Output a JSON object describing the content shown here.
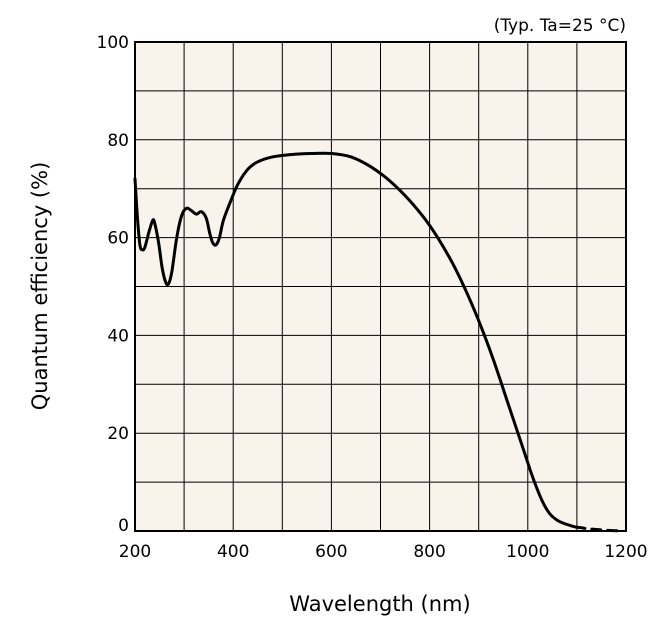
{
  "chart_data": {
    "type": "line",
    "title": "",
    "annotation": "(Typ. Ta=25 °C)",
    "xlabel": "Wavelength (nm)",
    "ylabel": "Quantum efficiency (%)",
    "xlim": [
      200,
      1200
    ],
    "ylim": [
      0,
      100
    ],
    "xticks": [
      200,
      400,
      600,
      800,
      1000,
      1200
    ],
    "yticks": [
      0,
      20,
      40,
      60,
      80,
      100
    ],
    "x_grid_step": 100,
    "y_grid_step": 10,
    "grid": true,
    "colors": {
      "plot_background": "#f8f4ec",
      "grid": "#000000",
      "series": "#000000"
    },
    "series": [
      {
        "name": "quantum-efficiency",
        "style": "solid",
        "points": [
          [
            200,
            72
          ],
          [
            205,
            64
          ],
          [
            210,
            58.5
          ],
          [
            215,
            57.5
          ],
          [
            220,
            58
          ],
          [
            228,
            61
          ],
          [
            236,
            63.5
          ],
          [
            240,
            63
          ],
          [
            248,
            59
          ],
          [
            255,
            54
          ],
          [
            262,
            51
          ],
          [
            268,
            50.5
          ],
          [
            275,
            53
          ],
          [
            285,
            60
          ],
          [
            295,
            64.5
          ],
          [
            305,
            66
          ],
          [
            315,
            65.5
          ],
          [
            325,
            64.8
          ],
          [
            335,
            65.3
          ],
          [
            345,
            64
          ],
          [
            352,
            61
          ],
          [
            358,
            59
          ],
          [
            365,
            58.5
          ],
          [
            372,
            60
          ],
          [
            380,
            63.5
          ],
          [
            395,
            67.5
          ],
          [
            410,
            71
          ],
          [
            430,
            74
          ],
          [
            450,
            75.5
          ],
          [
            480,
            76.5
          ],
          [
            520,
            77
          ],
          [
            560,
            77.2
          ],
          [
            600,
            77.2
          ],
          [
            640,
            76.5
          ],
          [
            680,
            74.5
          ],
          [
            720,
            71.5
          ],
          [
            760,
            67.5
          ],
          [
            800,
            62.5
          ],
          [
            840,
            56
          ],
          [
            870,
            50
          ],
          [
            900,
            43
          ],
          [
            930,
            35
          ],
          [
            960,
            26
          ],
          [
            990,
            17
          ],
          [
            1010,
            11
          ],
          [
            1030,
            6
          ],
          [
            1045,
            3.5
          ],
          [
            1060,
            2.2
          ],
          [
            1075,
            1.5
          ],
          [
            1090,
            1.0
          ],
          [
            1098,
            0.8
          ]
        ]
      },
      {
        "name": "quantum-efficiency-extrapolated",
        "style": "dashed",
        "points": [
          [
            1098,
            0.8
          ],
          [
            1120,
            0.5
          ],
          [
            1140,
            0.3
          ],
          [
            1160,
            0.15
          ],
          [
            1180,
            0.05
          ],
          [
            1195,
            0.0
          ]
        ]
      }
    ]
  }
}
